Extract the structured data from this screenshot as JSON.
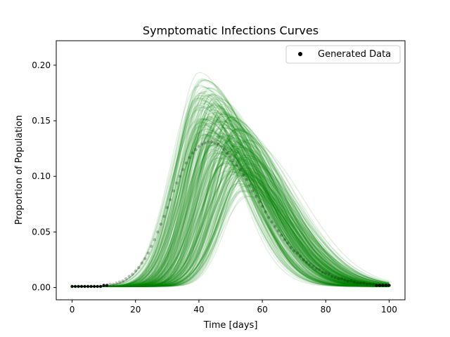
{
  "chart_data": {
    "type": "line",
    "title": "Symptomatic Infections Curves",
    "xlabel": "Time [days]",
    "ylabel": "Proportion of Population",
    "xlim": [
      -5,
      105
    ],
    "ylim": [
      -0.011,
      0.222
    ],
    "x_ticks": [
      0,
      20,
      40,
      60,
      80,
      100
    ],
    "x_tick_labels": [
      "0",
      "20",
      "40",
      "60",
      "80",
      "100"
    ],
    "y_ticks": [
      0.0,
      0.05,
      0.1,
      0.15,
      0.2
    ],
    "y_tick_labels": [
      "0.00",
      "0.05",
      "0.10",
      "0.15",
      "0.20"
    ],
    "grid": false,
    "legend": {
      "position": "top-right",
      "entries": [
        {
          "label": "Generated Data",
          "marker": "dot",
          "color": "#000000"
        }
      ]
    },
    "ensemble": {
      "description": "many posterior sample curves, each rising from ~0.001 at day 0, peaking, then decaying toward ~0.003 at day 100",
      "color": "#008000",
      "alpha": 0.12,
      "count": 300,
      "peak_day_range": [
        34,
        56
      ],
      "peak_value_range": [
        0.05,
        0.21
      ],
      "envelope_upper": [
        [
          0,
          0.001
        ],
        [
          20,
          0.02
        ],
        [
          30,
          0.12
        ],
        [
          36,
          0.211
        ],
        [
          40,
          0.2
        ],
        [
          46,
          0.187
        ],
        [
          55,
          0.15
        ],
        [
          70,
          0.08
        ],
        [
          85,
          0.03
        ],
        [
          100,
          0.01
        ]
      ],
      "envelope_lower": [
        [
          0,
          0.001
        ],
        [
          20,
          0.005
        ],
        [
          30,
          0.02
        ],
        [
          40,
          0.05
        ],
        [
          50,
          0.05
        ],
        [
          60,
          0.045
        ],
        [
          75,
          0.015
        ],
        [
          90,
          0.004
        ],
        [
          100,
          0.001
        ]
      ]
    },
    "series": [
      {
        "name": "Generated Data",
        "style": "scatter",
        "color": "#000000",
        "x": [
          0,
          1,
          2,
          3,
          4,
          5,
          6,
          7,
          8,
          9,
          10,
          11,
          12,
          13,
          14,
          15,
          16,
          17,
          18,
          19,
          20,
          21,
          22,
          23,
          24,
          25,
          26,
          27,
          28,
          29,
          30,
          31,
          32,
          33,
          34,
          35,
          36,
          37,
          38,
          39,
          40,
          41,
          42,
          43,
          44,
          45,
          46,
          47,
          48,
          49,
          50,
          51,
          52,
          53,
          54,
          55,
          56,
          57,
          58,
          59,
          60,
          61,
          62,
          63,
          64,
          65,
          66,
          67,
          68,
          69,
          70,
          71,
          72,
          73,
          74,
          75,
          76,
          77,
          78,
          79,
          80,
          81,
          82,
          83,
          84,
          85,
          86,
          87,
          88,
          89,
          90,
          91,
          92,
          93,
          94,
          95,
          96,
          97,
          98,
          99,
          100
        ],
        "y": [
          0.001,
          0.001,
          0.001,
          0.001,
          0.001,
          0.001,
          0.001,
          0.001,
          0.001,
          0.001,
          0.002,
          0.002,
          0.003,
          0.003,
          0.004,
          0.005,
          0.006,
          0.008,
          0.01,
          0.012,
          0.015,
          0.018,
          0.022,
          0.026,
          0.031,
          0.037,
          0.043,
          0.05,
          0.057,
          0.064,
          0.072,
          0.079,
          0.087,
          0.094,
          0.1,
          0.106,
          0.112,
          0.117,
          0.121,
          0.124,
          0.127,
          0.129,
          0.13,
          0.131,
          0.131,
          0.13,
          0.129,
          0.127,
          0.124,
          0.121,
          0.118,
          0.114,
          0.11,
          0.106,
          0.101,
          0.097,
          0.092,
          0.087,
          0.082,
          0.077,
          0.073,
          0.068,
          0.063,
          0.059,
          0.055,
          0.051,
          0.047,
          0.043,
          0.04,
          0.036,
          0.033,
          0.031,
          0.028,
          0.025,
          0.023,
          0.021,
          0.019,
          0.017,
          0.016,
          0.014,
          0.013,
          0.012,
          0.01,
          0.009,
          0.008,
          0.008,
          0.007,
          0.006,
          0.006,
          0.005,
          0.004,
          0.004,
          0.004,
          0.003,
          0.003,
          0.003,
          0.002,
          0.002,
          0.002,
          0.002,
          0.002
        ]
      }
    ]
  }
}
